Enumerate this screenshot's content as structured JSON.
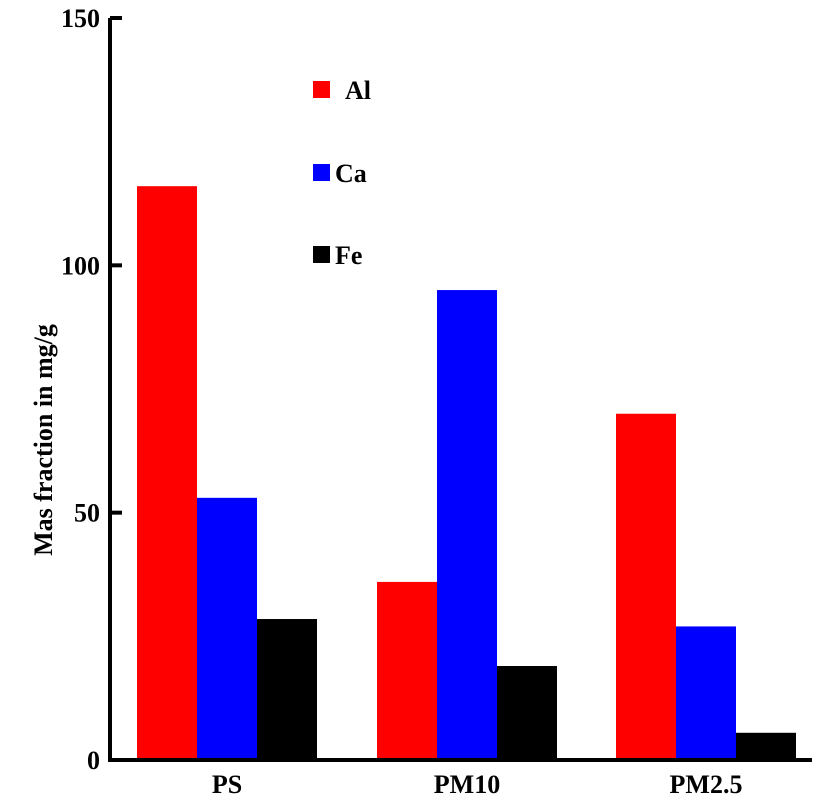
{
  "chart_data": {
    "type": "bar",
    "title": "",
    "xlabel": "",
    "ylabel": "Mas fraction in mg/g",
    "ylim": [
      0,
      150
    ],
    "yticks": [
      0,
      50,
      100,
      150
    ],
    "categories": [
      "PS",
      "PM10",
      "PM2.5"
    ],
    "series": [
      {
        "name": "Al",
        "color": "#ff0000",
        "values": [
          116,
          36,
          70
        ]
      },
      {
        "name": "Ca",
        "color": "#0000ff",
        "values": [
          53,
          95,
          27
        ]
      },
      {
        "name": "Fe",
        "color": "#000000",
        "values": [
          28.5,
          19,
          5.5
        ]
      }
    ],
    "grid": false,
    "legend_position": "top-center"
  }
}
